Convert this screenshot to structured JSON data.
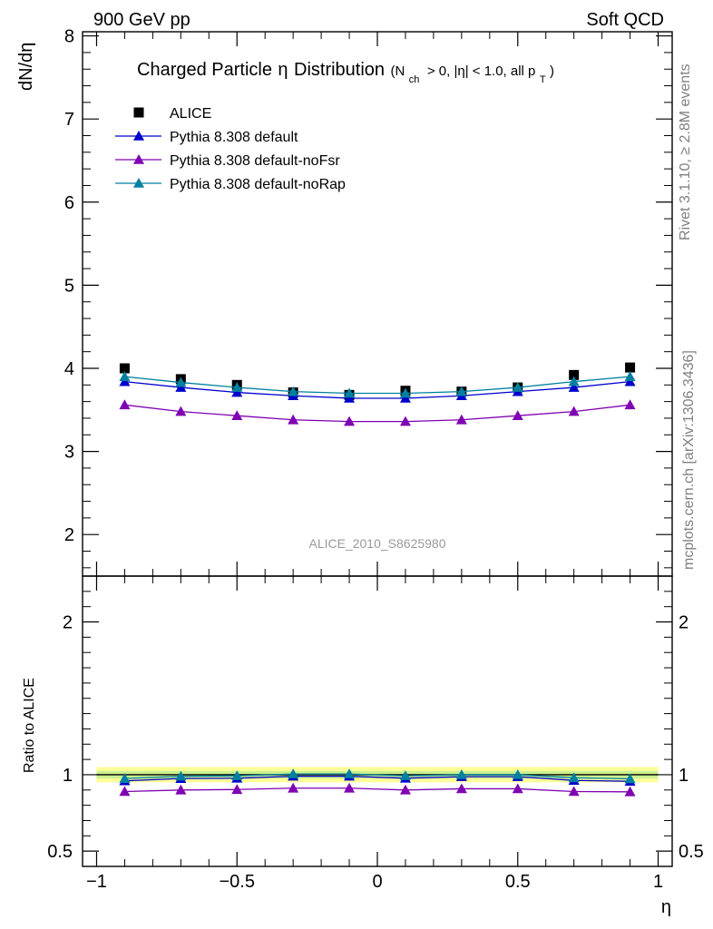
{
  "header": {
    "left": "900 GeV pp",
    "right": "Soft QCD"
  },
  "side_labels": {
    "top": "Rivet 3.1.10, ≥ 2.8M events",
    "bottom": "mcplots.cern.ch [arXiv:1306.3436]"
  },
  "analysis_label": "ALICE_2010_S8625980",
  "colors": {
    "data": "#000000",
    "default": "#0000cc",
    "noFsr": "#7f00b2",
    "noRap": "#0080a0",
    "band_outer": "#ffff99",
    "band_inner": "#ccf08f"
  },
  "chart_data": [
    {
      "type": "line",
      "title": "Charged Particle η Distribution",
      "title_parts": {
        "main": "Charged Particle",
        "eta": "η",
        "main2": "Distribution",
        "sub_open": "(N",
        "sub_ch": "ch",
        "sub_mid": "> 0, |η| < 1.0, all p",
        "sub_T": "T",
        "sub_close": ")"
      },
      "xlabel": "",
      "ylabel": "dN/dη",
      "xlim": [
        -1.05,
        1.05
      ],
      "ylim": [
        1.5,
        8.05
      ],
      "yticks": [
        2,
        3,
        4,
        5,
        6,
        7,
        8
      ],
      "ytick_labels": [
        "2",
        "3",
        "4",
        "5",
        "6",
        "7",
        "8"
      ],
      "legend_position": "top-left",
      "x": [
        -0.9,
        -0.7,
        -0.5,
        -0.3,
        -0.1,
        0.1,
        0.3,
        0.5,
        0.7,
        0.9
      ],
      "series": [
        {
          "name": "ALICE",
          "marker": "square",
          "values": [
            4.0,
            3.87,
            3.8,
            3.71,
            3.68,
            3.73,
            3.72,
            3.77,
            3.92,
            4.01
          ]
        },
        {
          "name": "Pythia 8.308 default",
          "marker": "triangle",
          "values": [
            3.84,
            3.77,
            3.71,
            3.67,
            3.64,
            3.64,
            3.67,
            3.72,
            3.77,
            3.84
          ]
        },
        {
          "name": "Pythia 8.308 default-noFsr",
          "marker": "triangle",
          "values": [
            3.56,
            3.48,
            3.43,
            3.38,
            3.36,
            3.36,
            3.38,
            3.43,
            3.48,
            3.56
          ]
        },
        {
          "name": "Pythia 8.308 default-noRap",
          "marker": "triangle",
          "values": [
            3.9,
            3.83,
            3.77,
            3.72,
            3.7,
            3.7,
            3.72,
            3.77,
            3.84,
            3.9
          ]
        }
      ]
    },
    {
      "type": "line",
      "title": "",
      "xlabel": "η",
      "ylabel": "Ratio to ALICE",
      "xlim": [
        -1.05,
        1.05
      ],
      "ylim": [
        0.4,
        2.3
      ],
      "yticks": [
        0.5,
        1,
        2
      ],
      "ytick_labels": [
        "0.5",
        "1",
        "2"
      ],
      "xticks": [
        -1,
        -0.5,
        0,
        0.5,
        1
      ],
      "xtick_labels": [
        "−1",
        "−0.5",
        "0",
        "0.5",
        "1"
      ],
      "uncertainty_band": {
        "outer": 0.05,
        "inner": 0.025
      },
      "x": [
        -0.9,
        -0.7,
        -0.5,
        -0.3,
        -0.1,
        0.1,
        0.3,
        0.5,
        0.7,
        0.9
      ],
      "series": [
        {
          "name": "Pythia 8.308 default",
          "values": [
            0.96,
            0.975,
            0.977,
            0.99,
            0.99,
            0.977,
            0.987,
            0.987,
            0.963,
            0.957
          ]
        },
        {
          "name": "Pythia 8.308 default-noFsr",
          "values": [
            0.89,
            0.9,
            0.903,
            0.912,
            0.912,
            0.9,
            0.908,
            0.908,
            0.89,
            0.888
          ]
        },
        {
          "name": "Pythia 8.308 default-noRap",
          "values": [
            0.975,
            0.99,
            0.993,
            1.005,
            1.005,
            0.993,
            1.0,
            1.0,
            0.98,
            0.973
          ]
        }
      ]
    }
  ]
}
